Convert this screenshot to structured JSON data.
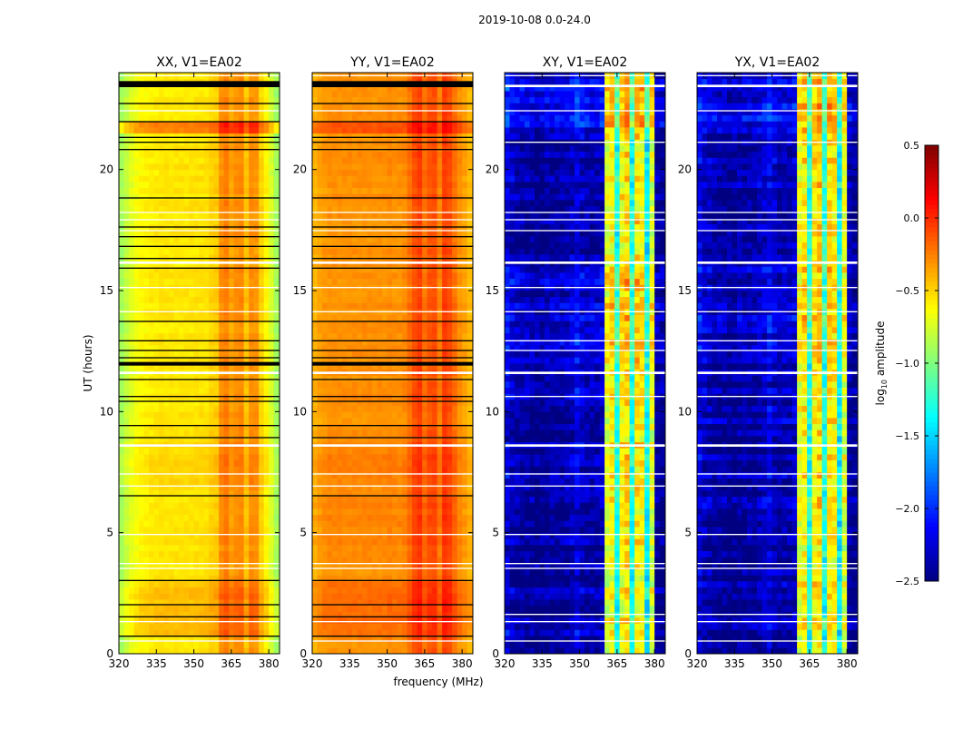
{
  "chart_data": {
    "type": "heatmap",
    "title": "2019-10-08 0.0-24.0",
    "xlabel": "frequency (MHz)",
    "ylabel": "UT (hours)",
    "xlim": [
      320,
      384.3
    ],
    "ylim": [
      0,
      24
    ],
    "xticks": [
      "320",
      "335",
      "350",
      "365",
      "380"
    ],
    "xtick_values": [
      320,
      335,
      350,
      365,
      380
    ],
    "yticks": [
      "0",
      "5",
      "10",
      "15",
      "20"
    ],
    "ytick_values": [
      0,
      5,
      10,
      15,
      20
    ],
    "freq_bin_mhz": 2,
    "time_bin_hours": 0.25,
    "colorbar": {
      "label_main": "log",
      "label_sub": "10",
      "label_rest": " amplitude",
      "range": [
        -2.5,
        0.5
      ],
      "ticks": [
        "−2.5",
        "−2.0",
        "−1.5",
        "−1.0",
        "−0.5",
        "0.0",
        "0.5"
      ],
      "tick_values": [
        -2.5,
        -2.0,
        -1.5,
        -1.0,
        -0.5,
        0.0,
        0.5
      ],
      "colormap": "jet"
    },
    "panels": [
      {
        "title": "XX, V1=EA02",
        "freq_profile": [
          -0.9,
          -0.8,
          -0.72,
          -0.66,
          -0.62,
          -0.6,
          -0.58,
          -0.57,
          -0.56,
          -0.56,
          -0.56,
          -0.56,
          -0.56,
          -0.56,
          -0.56,
          -0.55,
          -0.55,
          -0.55,
          -0.5,
          -0.48,
          -0.3,
          -0.25,
          -0.35,
          -0.3,
          -0.28,
          -0.45,
          -0.3,
          -0.32,
          -0.5,
          -0.6,
          -0.75,
          -0.9
        ],
        "noise": 0.06,
        "time_offsets": [
          {
            "from": 21.3,
            "to": 22.0,
            "offset": 0.3
          },
          {
            "from": 0.7,
            "to": 2.9,
            "offset": 0.12
          },
          {
            "from": 7.0,
            "to": 8.6,
            "offset": 0.05
          }
        ],
        "flags_black": [
          [
            23.4,
            23.65
          ],
          [
            22.7,
            22.75
          ],
          [
            21.95,
            22.0
          ],
          [
            21.3,
            21.35
          ],
          [
            21.1,
            21.15
          ],
          [
            20.8,
            20.85
          ],
          [
            18.8,
            18.85
          ],
          [
            17.6,
            17.65
          ],
          [
            17.2,
            17.25
          ],
          [
            16.8,
            16.85
          ],
          [
            16.3,
            16.35
          ],
          [
            15.9,
            15.95
          ],
          [
            13.7,
            13.75
          ],
          [
            12.9,
            12.95
          ],
          [
            12.5,
            12.55
          ],
          [
            12.2,
            12.25
          ],
          [
            11.9,
            12.05
          ],
          [
            11.3,
            11.35
          ],
          [
            10.6,
            10.65
          ],
          [
            10.4,
            10.45
          ],
          [
            9.4,
            9.45
          ],
          [
            8.9,
            8.95
          ],
          [
            6.5,
            6.55
          ],
          [
            3.0,
            3.05
          ],
          [
            2.0,
            2.05
          ],
          [
            1.5,
            1.55
          ],
          [
            0.7,
            0.75
          ]
        ],
        "flags_white": [
          [
            23.85,
            23.9
          ],
          [
            22.4,
            22.45
          ],
          [
            18.2,
            18.25
          ],
          [
            17.9,
            17.95
          ],
          [
            17.45,
            17.5
          ],
          [
            16.1,
            16.2
          ],
          [
            15.1,
            15.15
          ],
          [
            14.1,
            14.15
          ],
          [
            11.55,
            11.65
          ],
          [
            8.55,
            8.65
          ],
          [
            7.4,
            7.45
          ],
          [
            6.9,
            6.95
          ],
          [
            4.9,
            4.95
          ],
          [
            3.7,
            3.75
          ],
          [
            3.5,
            3.55
          ],
          [
            1.3,
            1.35
          ],
          [
            0.5,
            0.55
          ]
        ]
      },
      {
        "title": "YY, V1=EA02",
        "freq_profile": [
          -0.4,
          -0.35,
          -0.32,
          -0.3,
          -0.3,
          -0.3,
          -0.3,
          -0.3,
          -0.3,
          -0.3,
          -0.3,
          -0.3,
          -0.3,
          -0.3,
          -0.3,
          -0.28,
          -0.3,
          -0.3,
          -0.28,
          -0.2,
          -0.1,
          -0.05,
          -0.2,
          -0.12,
          -0.1,
          -0.25,
          -0.05,
          -0.1,
          -0.2,
          -0.3,
          -0.35,
          -0.42
        ],
        "noise": 0.06,
        "time_offsets": [
          {
            "from": 21.3,
            "to": 22.0,
            "offset": 0.2
          },
          {
            "from": 0.7,
            "to": 2.9,
            "offset": 0.12
          },
          {
            "from": 4.0,
            "to": 8.6,
            "offset": 0.04
          }
        ],
        "flags_black": [
          [
            23.4,
            23.65
          ],
          [
            22.7,
            22.75
          ],
          [
            21.95,
            22.0
          ],
          [
            21.3,
            21.35
          ],
          [
            21.1,
            21.15
          ],
          [
            20.8,
            20.85
          ],
          [
            18.8,
            18.85
          ],
          [
            17.6,
            17.65
          ],
          [
            17.2,
            17.25
          ],
          [
            16.8,
            16.85
          ],
          [
            16.3,
            16.35
          ],
          [
            15.9,
            15.95
          ],
          [
            13.7,
            13.75
          ],
          [
            12.9,
            12.95
          ],
          [
            12.5,
            12.55
          ],
          [
            12.2,
            12.25
          ],
          [
            11.9,
            12.05
          ],
          [
            11.3,
            11.35
          ],
          [
            10.6,
            10.65
          ],
          [
            10.4,
            10.45
          ],
          [
            9.4,
            9.45
          ],
          [
            8.9,
            8.95
          ],
          [
            6.5,
            6.55
          ],
          [
            3.0,
            3.05
          ],
          [
            2.0,
            2.05
          ],
          [
            1.5,
            1.55
          ],
          [
            0.7,
            0.75
          ]
        ],
        "flags_white": [
          [
            23.85,
            23.9
          ],
          [
            22.4,
            22.45
          ],
          [
            18.2,
            18.25
          ],
          [
            17.9,
            17.95
          ],
          [
            17.45,
            17.5
          ],
          [
            16.1,
            16.2
          ],
          [
            15.1,
            15.15
          ],
          [
            14.1,
            14.15
          ],
          [
            11.55,
            11.65
          ],
          [
            8.55,
            8.65
          ],
          [
            7.4,
            7.45
          ],
          [
            6.9,
            6.95
          ],
          [
            4.9,
            4.95
          ],
          [
            3.7,
            3.75
          ],
          [
            3.5,
            3.55
          ],
          [
            1.3,
            1.35
          ],
          [
            0.5,
            0.55
          ]
        ]
      },
      {
        "title": "XY, V1=EA02",
        "freq_profile": [
          -2.2,
          -2.3,
          -2.35,
          -2.4,
          -2.4,
          -2.4,
          -2.45,
          -2.45,
          -2.4,
          -2.4,
          -2.4,
          -2.4,
          -2.35,
          -2.3,
          -2.2,
          -2.3,
          -2.35,
          -2.35,
          -2.35,
          -2.3,
          -0.7,
          -0.6,
          -1.3,
          -0.6,
          -0.5,
          -1.3,
          -0.55,
          -0.6,
          -1.4,
          -0.7,
          -2.4,
          -2.45
        ],
        "noise": 0.3,
        "time_offsets": [
          {
            "from": 21.5,
            "to": 24,
            "offset": 0.2
          },
          {
            "from": 12.0,
            "to": 16.0,
            "offset": 0.1
          }
        ],
        "flags_black": [],
        "flags_white": [
          [
            23.85,
            23.9
          ],
          [
            23.4,
            23.5
          ],
          [
            22.4,
            22.45
          ],
          [
            21.1,
            21.15
          ],
          [
            18.2,
            18.25
          ],
          [
            17.9,
            17.95
          ],
          [
            17.45,
            17.5
          ],
          [
            16.1,
            16.2
          ],
          [
            15.1,
            15.15
          ],
          [
            14.1,
            14.15
          ],
          [
            12.9,
            12.95
          ],
          [
            12.5,
            12.55
          ],
          [
            11.55,
            11.65
          ],
          [
            10.6,
            10.65
          ],
          [
            8.55,
            8.65
          ],
          [
            7.4,
            7.45
          ],
          [
            6.9,
            6.95
          ],
          [
            4.9,
            4.95
          ],
          [
            3.7,
            3.75
          ],
          [
            3.5,
            3.55
          ],
          [
            1.6,
            1.65
          ],
          [
            1.3,
            1.35
          ],
          [
            0.5,
            0.55
          ]
        ]
      },
      {
        "title": "YX, V1=EA02",
        "freq_profile": [
          -2.2,
          -2.3,
          -2.35,
          -2.4,
          -2.4,
          -2.4,
          -2.45,
          -2.45,
          -2.4,
          -2.4,
          -2.4,
          -2.4,
          -2.35,
          -2.3,
          -2.2,
          -2.3,
          -2.35,
          -2.35,
          -2.35,
          -2.3,
          -0.7,
          -0.6,
          -1.3,
          -0.6,
          -0.5,
          -1.3,
          -0.55,
          -0.6,
          -1.4,
          -0.7,
          -2.4,
          -2.45
        ],
        "noise": 0.3,
        "time_offsets": [
          {
            "from": 21.5,
            "to": 24,
            "offset": 0.2
          },
          {
            "from": 12.0,
            "to": 16.0,
            "offset": 0.1
          }
        ],
        "flags_black": [],
        "flags_white": [
          [
            23.85,
            23.9
          ],
          [
            23.4,
            23.5
          ],
          [
            22.4,
            22.45
          ],
          [
            21.1,
            21.15
          ],
          [
            18.2,
            18.25
          ],
          [
            17.9,
            17.95
          ],
          [
            17.45,
            17.5
          ],
          [
            16.1,
            16.2
          ],
          [
            15.1,
            15.15
          ],
          [
            14.1,
            14.15
          ],
          [
            12.9,
            12.95
          ],
          [
            12.5,
            12.55
          ],
          [
            11.55,
            11.65
          ],
          [
            10.6,
            10.65
          ],
          [
            8.55,
            8.65
          ],
          [
            7.4,
            7.45
          ],
          [
            6.9,
            6.95
          ],
          [
            4.9,
            4.95
          ],
          [
            3.7,
            3.75
          ],
          [
            3.5,
            3.55
          ],
          [
            1.6,
            1.65
          ],
          [
            1.3,
            1.35
          ],
          [
            0.5,
            0.55
          ]
        ]
      }
    ]
  }
}
